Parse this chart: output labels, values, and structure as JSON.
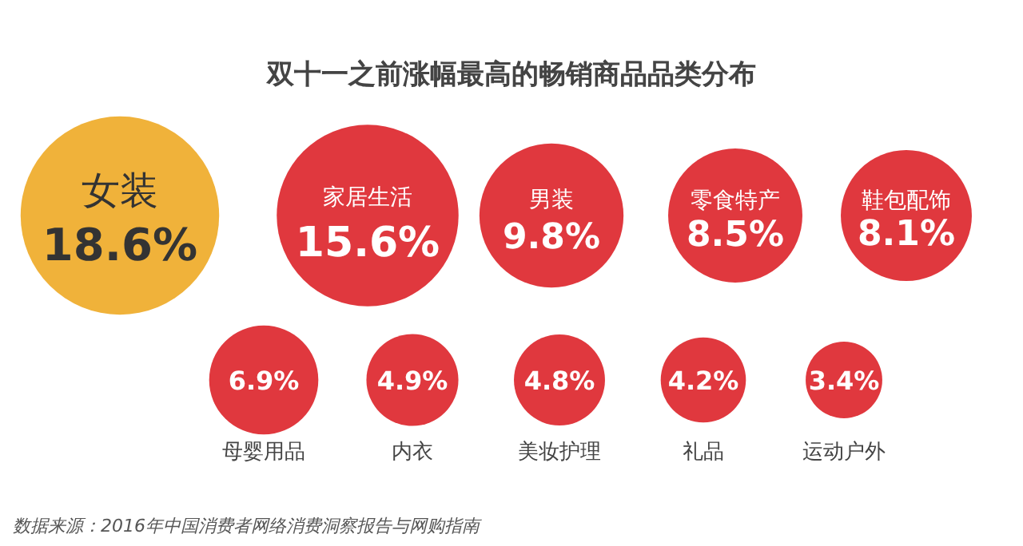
{
  "chart_data": {
    "type": "other",
    "title": "双十一之前涨幅最高的畅销商品品类分布",
    "categories": [
      "女装",
      "家居生活",
      "男装",
      "零食特产",
      "鞋包配饰",
      "母婴用品",
      "内衣",
      "美妆护理",
      "礼品",
      "运动户外"
    ],
    "values": [
      18.6,
      15.6,
      9.8,
      8.5,
      8.1,
      6.9,
      4.9,
      4.8,
      4.2,
      3.4
    ],
    "value_labels": [
      "18.6%",
      "15.6%",
      "9.8%",
      "8.5%",
      "8.1%",
      "6.9%",
      "4.9%",
      "4.8%",
      "4.2%",
      "3.4%"
    ],
    "colors": [
      "#f0b23a",
      "#e0383e",
      "#e0383e",
      "#e0383e",
      "#e0383e",
      "#e0383e",
      "#e0383e",
      "#e0383e",
      "#e0383e",
      "#e0383e"
    ],
    "annotations": [
      "数据来源：2016年中国消费者网络消费洞察报告与网购指南"
    ]
  }
}
